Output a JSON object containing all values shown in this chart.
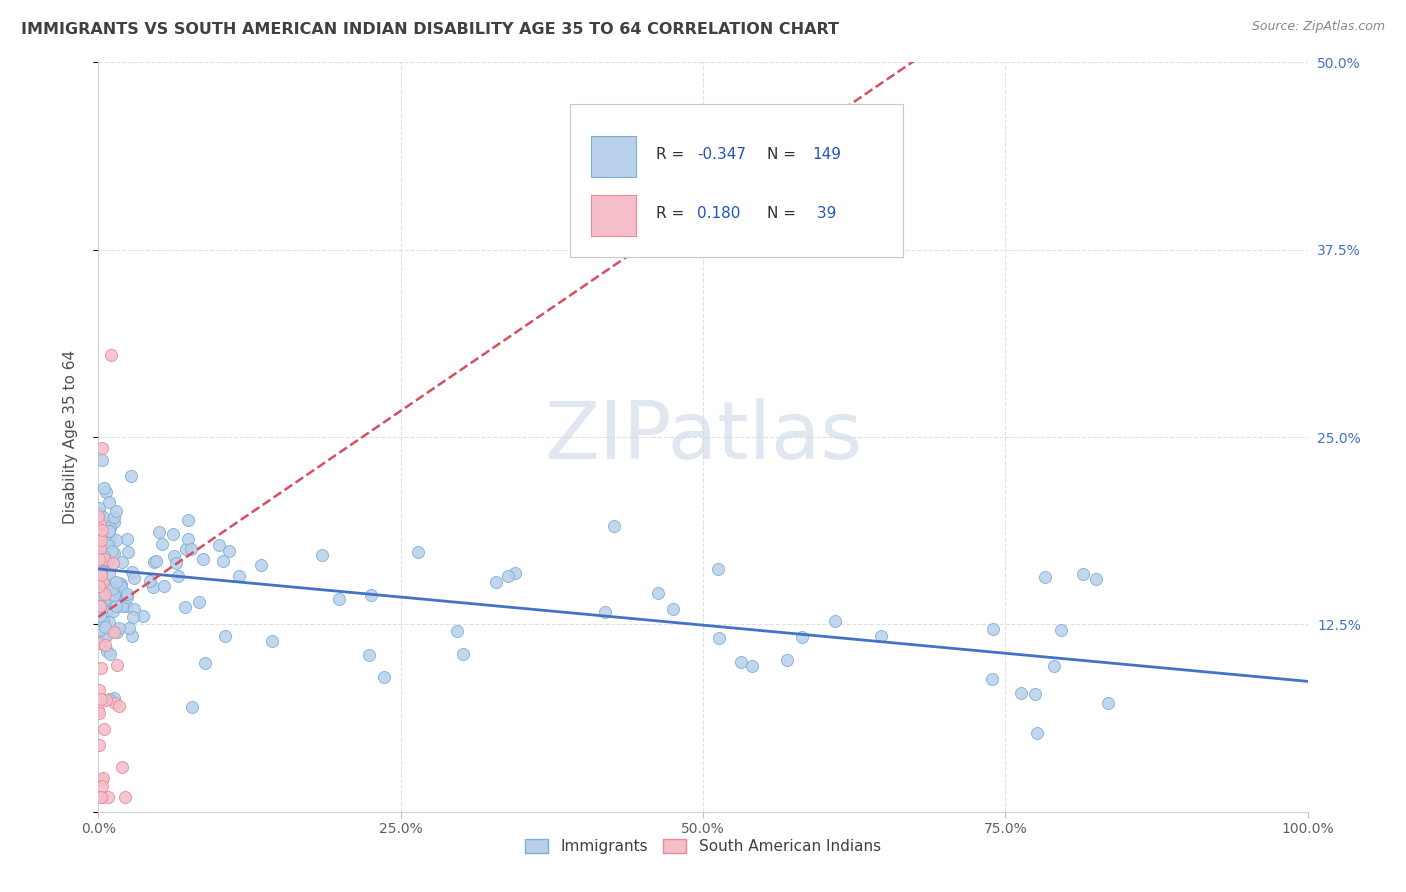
{
  "title": "IMMIGRANTS VS SOUTH AMERICAN INDIAN DISABILITY AGE 35 TO 64 CORRELATION CHART",
  "source": "Source: ZipAtlas.com",
  "ylabel": "Disability Age 35 to 64",
  "xlim": [
    0,
    1.0
  ],
  "ylim": [
    0,
    0.5
  ],
  "immigrants_color": "#b8d0ea",
  "immigrants_edge": "#7aafd4",
  "south_american_color": "#f5bec8",
  "south_american_edge": "#e88898",
  "trend_blue": "#4472c4",
  "trend_pink": "#d45060",
  "watermark_text": "ZIPatlas",
  "watermark_color": "#ccd8e8",
  "background_color": "#ffffff",
  "grid_color": "#e0e0e0",
  "title_color": "#404040",
  "axis_label_color": "#505050",
  "right_tick_color": "#4472c4"
}
